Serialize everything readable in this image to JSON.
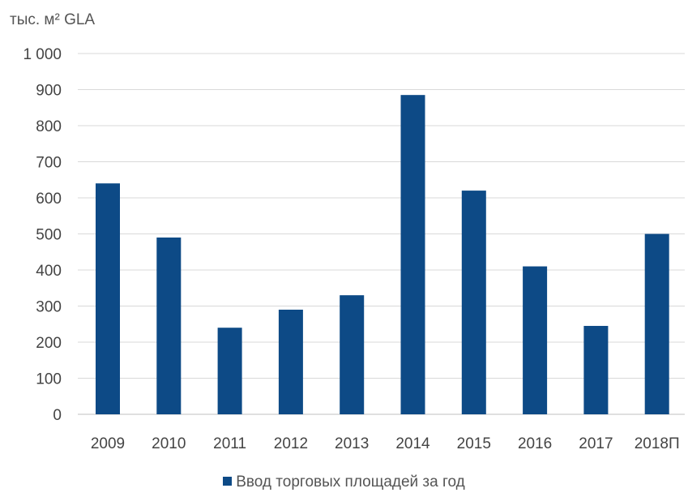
{
  "chart_data": {
    "type": "bar",
    "title": "",
    "ylabel": "тыс. м² GLA",
    "xlabel": "",
    "categories": [
      "2009",
      "2010",
      "2011",
      "2012",
      "2013",
      "2014",
      "2015",
      "2016",
      "2017",
      "2018П"
    ],
    "series": [
      {
        "name": "Ввод торговых площадей за год",
        "values": [
          640,
          490,
          240,
          290,
          330,
          885,
          620,
          410,
          245,
          500
        ]
      }
    ],
    "ylim": [
      0,
      1000
    ],
    "yticks": [
      "0",
      "100",
      "200",
      "300",
      "400",
      "500",
      "600",
      "700",
      "800",
      "900",
      "1 000"
    ],
    "grid": true,
    "legend_position": "bottom",
    "bar_color": "#0d4a86"
  }
}
